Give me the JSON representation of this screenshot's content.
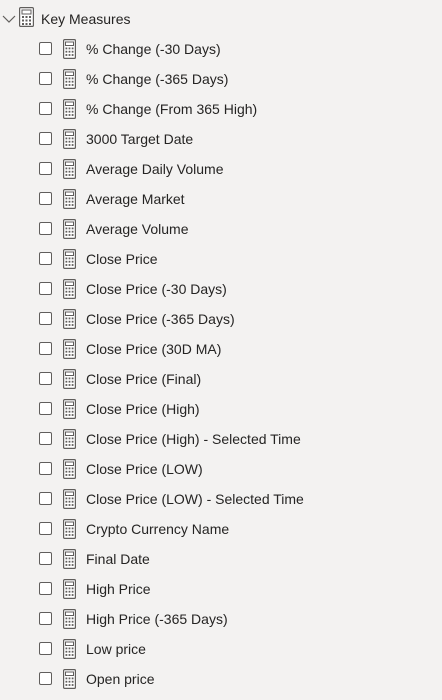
{
  "group": {
    "label": "Key Measures",
    "expand_icon": "chevron-down-icon",
    "icon": "calculator-icon"
  },
  "measures": [
    "% Change (-30 Days)",
    "% Change (-365 Days)",
    "% Change (From 365 High)",
    "3000 Target Date",
    "Average Daily Volume",
    "Average Market",
    "Average Volume",
    "Close Price",
    "Close Price (-30 Days)",
    "Close Price (-365 Days)",
    "Close Price (30D MA)",
    "Close Price (Final)",
    "Close Price (High)",
    "Close Price (High) - Selected Time",
    "Close Price (LOW)",
    "Close Price (LOW) - Selected Time",
    "Crypto Currency Name",
    "Final Date",
    "High Price",
    "High Price (-365 Days)",
    "Low price",
    "Open price"
  ]
}
